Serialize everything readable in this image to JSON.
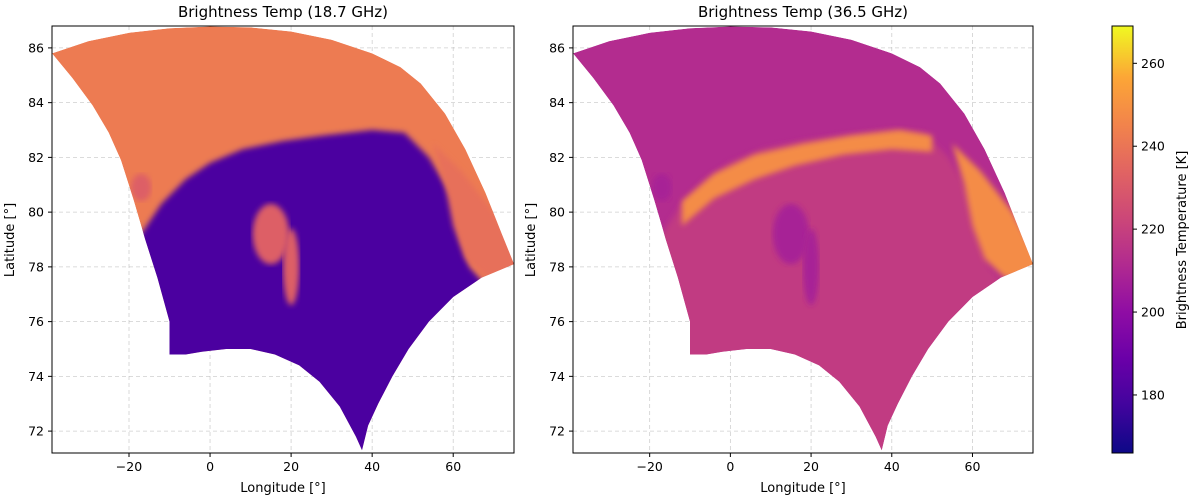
{
  "chart_data": [
    {
      "type": "heatmap",
      "title": "Brightness Temp (18.7 GHz)",
      "xlabel": "Longitude [°]",
      "ylabel": "Latitude [°]",
      "xlim": [
        -39,
        75
      ],
      "ylim": [
        71.2,
        86.8
      ],
      "xticks": [
        -20,
        0,
        20,
        40,
        60
      ],
      "yticks": [
        72,
        74,
        76,
        78,
        80,
        82,
        84,
        86
      ],
      "grid": true,
      "colormap": "plasma",
      "regions": [
        {
          "name": "",
          "mean_value": 242,
          "extent": "north, above ~82.5° lat"
        },
        {
          "name": "",
          "mean_value": 180,
          "extent": "south-central, below ~82° lat"
        },
        {
          "name": "",
          "mean_value": 238,
          "extent": "eastern edge near 60–75° lon, 78–82° lat"
        }
      ]
    },
    {
      "type": "heatmap",
      "title": "Brightness Temp (36.5 GHz)",
      "xlabel": "Longitude [°]",
      "ylabel": "Latitude [°]",
      "xlim": [
        -39,
        75
      ],
      "ylim": [
        71.2,
        86.8
      ],
      "xticks": [
        -20,
        0,
        20,
        40,
        60
      ],
      "yticks": [
        72,
        74,
        76,
        78,
        80,
        82,
        84,
        86
      ],
      "grid": true,
      "colormap": "plasma",
      "regions": [
        {
          "name": "",
          "mean_value": 212,
          "extent": "north, above ~82.5° lat"
        },
        {
          "name": "",
          "mean_value": 218,
          "extent": "south-central, below ~82° lat"
        },
        {
          "name": "",
          "mean_value": 248,
          "extent": "band along ~82° lat and eastern edge"
        }
      ]
    }
  ],
  "colorbar": {
    "label": "Brightness Temperature [K]",
    "min": 166,
    "max": 269,
    "ticks": [
      180,
      200,
      220,
      240,
      260
    ],
    "colormap": "plasma"
  }
}
